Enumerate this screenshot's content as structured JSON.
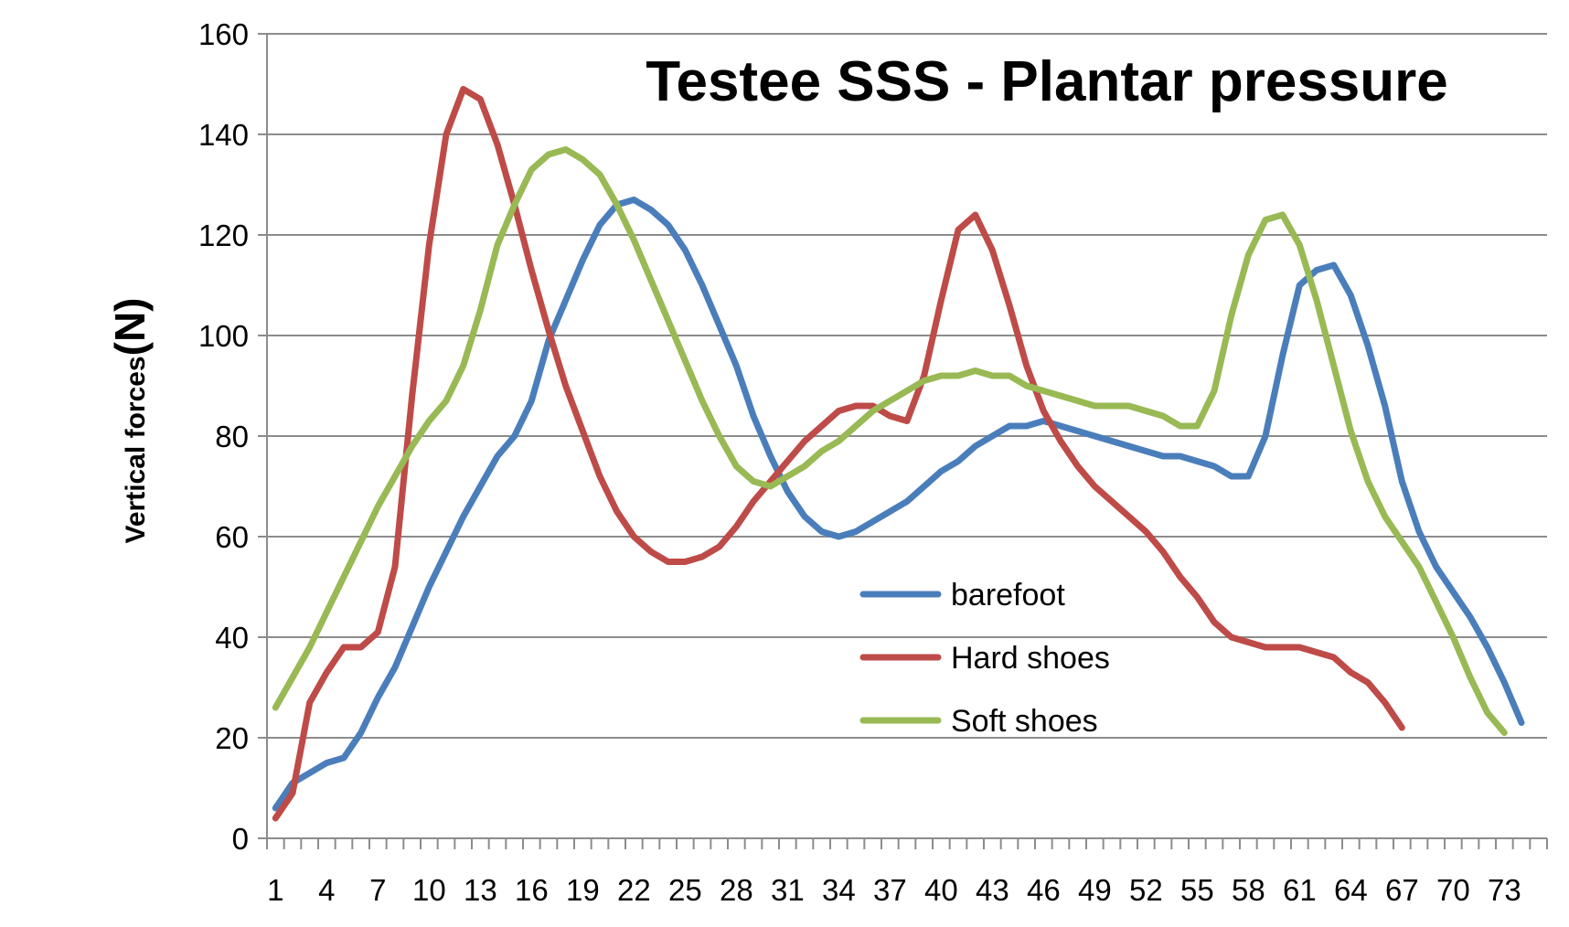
{
  "chart_data": {
    "type": "line",
    "title": "Testee SSS - Plantar pressure",
    "ylabel": "Vertical forces",
    "ylabel_unit": "(N)",
    "xlabel": "",
    "ylim": [
      0,
      160
    ],
    "yticks": [
      0,
      20,
      40,
      60,
      80,
      100,
      120,
      140,
      160
    ],
    "xlim": [
      1,
      75
    ],
    "xtick_labels": [
      "1",
      "4",
      "7",
      "10",
      "13",
      "16",
      "19",
      "22",
      "25",
      "28",
      "31",
      "34",
      "37",
      "40",
      "43",
      "46",
      "49",
      "52",
      "55",
      "58",
      "61",
      "64",
      "67",
      "70",
      "73"
    ],
    "grid": true,
    "legend": {
      "placement": "center-right",
      "entries": [
        "barefoot",
        "Hard shoes",
        "Soft shoes"
      ]
    },
    "series": [
      {
        "name": "barefoot",
        "color": "#4a7ebb",
        "values": [
          6,
          11,
          13,
          15,
          16,
          21,
          28,
          34,
          42,
          50,
          57,
          64,
          70,
          76,
          80,
          87,
          99,
          107,
          115,
          122,
          126,
          127,
          125,
          122,
          117,
          110,
          102,
          94,
          84,
          76,
          69,
          64,
          61,
          60,
          61,
          63,
          65,
          67,
          70,
          73,
          75,
          78,
          80,
          82,
          82,
          83,
          82,
          81,
          80,
          79,
          78,
          77,
          76,
          76,
          75,
          74,
          72,
          72,
          80,
          96,
          110,
          113,
          114,
          108,
          98,
          86,
          71,
          61,
          54,
          49,
          44,
          38,
          31,
          23
        ]
      },
      {
        "name": "Hard shoes",
        "color": "#be4b48",
        "values": [
          4,
          9,
          27,
          33,
          38,
          38,
          41,
          54,
          88,
          118,
          140,
          149,
          147,
          138,
          126,
          113,
          101,
          90,
          81,
          72,
          65,
          60,
          57,
          55,
          55,
          56,
          58,
          62,
          67,
          71,
          75,
          79,
          82,
          85,
          86,
          86,
          84,
          83,
          92,
          107,
          121,
          124,
          117,
          106,
          94,
          85,
          79,
          74,
          70,
          67,
          64,
          61,
          57,
          52,
          48,
          43,
          40,
          39,
          38,
          38,
          38,
          37,
          36,
          33,
          31,
          27,
          22
        ]
      },
      {
        "name": "Soft shoes",
        "color": "#98b954",
        "values": [
          26,
          32,
          38,
          45,
          52,
          59,
          66,
          72,
          78,
          83,
          87,
          94,
          105,
          118,
          126,
          133,
          136,
          137,
          135,
          132,
          126,
          119,
          111,
          103,
          95,
          87,
          80,
          74,
          71,
          70,
          72,
          74,
          77,
          79,
          82,
          85,
          87,
          89,
          91,
          92,
          92,
          93,
          92,
          92,
          90,
          89,
          88,
          87,
          86,
          86,
          86,
          85,
          84,
          82,
          82,
          89,
          104,
          116,
          123,
          124,
          118,
          107,
          94,
          81,
          71,
          64,
          59,
          54,
          47,
          40,
          32,
          25,
          21
        ]
      }
    ]
  }
}
